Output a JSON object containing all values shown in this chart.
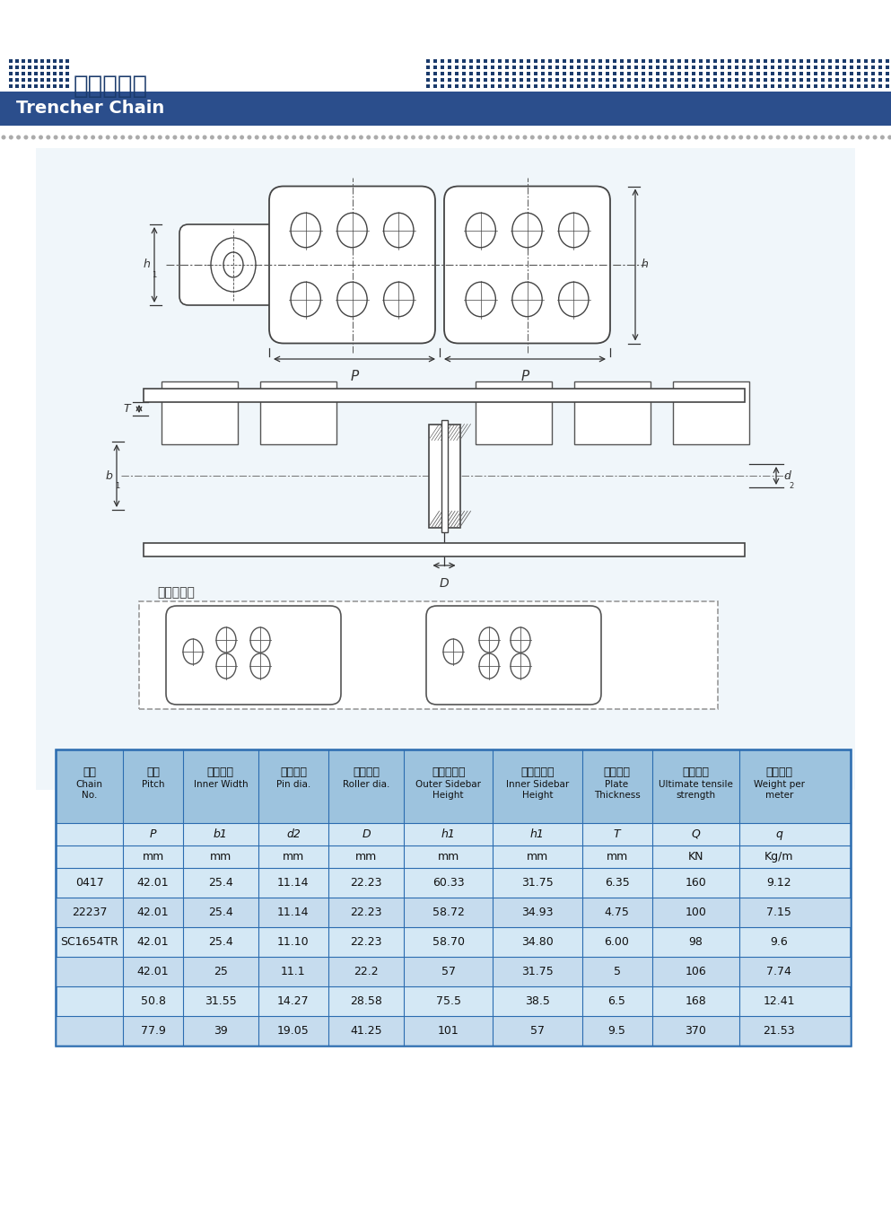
{
  "title_cn": "开沟机链条",
  "title_en": "Trencher Chain",
  "header_bg": "#2B4E8C",
  "header_text_color": "#FFFFFF",
  "bg_color": "#FFFFFF",
  "drawing_bg": "#F0F6FA",
  "table_header_bg": "#9DC3DE",
  "table_row_bg": "#D4E8F5",
  "table_row_alt": "#C0D8EE",
  "table_border": "#2B6CB0",
  "dark_blue": "#1A3A6B",
  "col_headers_cn": [
    "链号",
    "节距",
    "内节内宽",
    "销轴直径",
    "滚子外径",
    "外链板高度",
    "内链板高度",
    "链板厚度",
    "抗拉强度",
    "每米重量"
  ],
  "col_headers_en_line1": [
    "Chain",
    "Pitch",
    "Inner Width",
    "Pin dia.",
    "Roller dia.",
    "Outer Sidebar",
    "Inner Sidebar",
    "Plate",
    "Ultimate tensile",
    "Weight per"
  ],
  "col_headers_en_line2": [
    "No.",
    "",
    "",
    "",
    "",
    "Height",
    "Height",
    "Thickness",
    "strength",
    "meter"
  ],
  "col_symbols": [
    "",
    "P",
    "b1",
    "d2",
    "D",
    "h1",
    "h1",
    "T",
    "Q",
    "q"
  ],
  "col_units": [
    "",
    "mm",
    "mm",
    "mm",
    "mm",
    "mm",
    "mm",
    "mm",
    "KN",
    "Kg/m"
  ],
  "table_data": [
    [
      "0417",
      "42.01",
      "25.4",
      "11.14",
      "22.23",
      "60.33",
      "31.75",
      "6.35",
      "160",
      "9.12"
    ],
    [
      "22237",
      "42.01",
      "25.4",
      "11.14",
      "22.23",
      "58.72",
      "34.93",
      "4.75",
      "100",
      "7.15"
    ],
    [
      "SC1654TR",
      "42.01",
      "25.4",
      "11.10",
      "22.23",
      "58.70",
      "34.80",
      "6.00",
      "98",
      "9.6"
    ],
    [
      "",
      "42.01",
      "25",
      "11.1",
      "22.2",
      "57",
      "31.75",
      "5",
      "106",
      "7.74"
    ],
    [
      "",
      "50.8",
      "31.55",
      "14.27",
      "28.58",
      "75.5",
      "38.5",
      "6.5",
      "168",
      "12.41"
    ],
    [
      "",
      "77.9",
      "39",
      "19.05",
      "41.25",
      "101",
      "57",
      "9.5",
      "370",
      "21.53"
    ]
  ],
  "outer_plate_label": "外链板类型"
}
